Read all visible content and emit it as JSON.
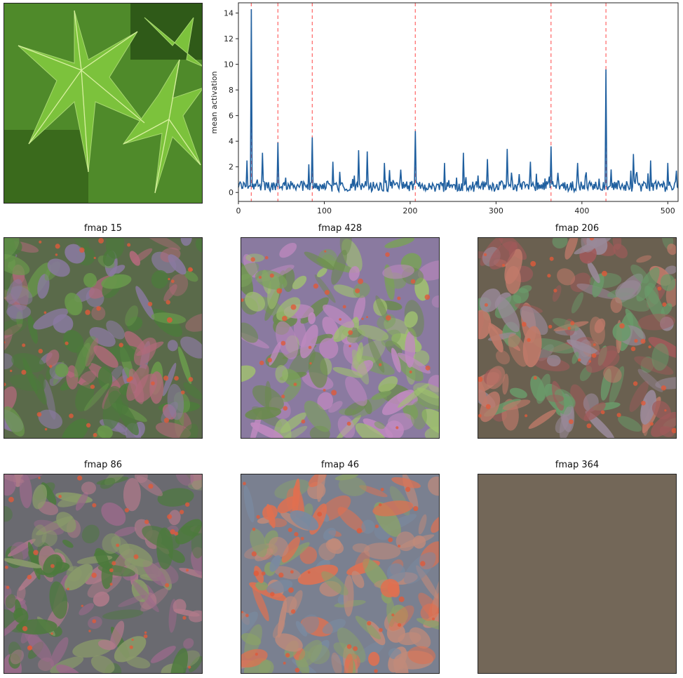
{
  "image": {
    "subject": "leaf photo"
  },
  "panels": [
    {
      "title": "fmap 15",
      "base": "#5a6a4a",
      "accents": [
        "#6a9a4c",
        "#b06a7a",
        "#8a7aa0",
        "#4c7a3c"
      ]
    },
    {
      "title": "fmap 428",
      "base": "#8a7aa0",
      "accents": [
        "#7aa05a",
        "#c08ac0",
        "#6a8a4c",
        "#a0c070"
      ]
    },
    {
      "title": "fmap 206",
      "base": "#6a6050",
      "accents": [
        "#a05a5a",
        "#6a9a6a",
        "#9a8a9a",
        "#c07a6a"
      ]
    },
    {
      "title": "fmap 86",
      "base": "#6a6a70",
      "accents": [
        "#4c7a3c",
        "#b07a8a",
        "#8a9a6a",
        "#9a6a8a"
      ]
    },
    {
      "title": "fmap 46",
      "base": "#7a8090",
      "accents": [
        "#8aa06a",
        "#c08a7a",
        "#7a8aa0",
        "#e07050"
      ]
    },
    {
      "title": "fmap 364",
      "base": "#736758",
      "accents": []
    }
  ],
  "chart_data": {
    "type": "line",
    "title": "",
    "xlabel": "",
    "ylabel": "mean activation",
    "xlim": [
      0,
      512
    ],
    "ylim": [
      -0.7,
      14.8
    ],
    "xticks": [
      0,
      100,
      200,
      300,
      400,
      500
    ],
    "yticks": [
      0,
      2,
      4,
      6,
      8,
      10,
      12,
      14
    ],
    "grid": false,
    "line_color": "#1f5f9f",
    "highlight_color": "#ff7070",
    "highlight_x": [
      15,
      46,
      86,
      206,
      364,
      428
    ],
    "peaks": [
      {
        "x": 15,
        "y": 14.3
      },
      {
        "x": 46,
        "y": 3.9
      },
      {
        "x": 86,
        "y": 4.3
      },
      {
        "x": 206,
        "y": 4.8
      },
      {
        "x": 364,
        "y": 3.6
      },
      {
        "x": 428,
        "y": 9.6
      },
      {
        "x": 28,
        "y": 3.1
      },
      {
        "x": 10,
        "y": 2.5
      },
      {
        "x": 140,
        "y": 3.3
      },
      {
        "x": 150,
        "y": 3.2
      },
      {
        "x": 262,
        "y": 3.1
      },
      {
        "x": 313,
        "y": 3.4
      },
      {
        "x": 460,
        "y": 3.0
      },
      {
        "x": 82,
        "y": 2.2
      },
      {
        "x": 110,
        "y": 2.4
      },
      {
        "x": 170,
        "y": 2.3
      },
      {
        "x": 240,
        "y": 2.3
      },
      {
        "x": 290,
        "y": 2.6
      },
      {
        "x": 340,
        "y": 2.4
      },
      {
        "x": 395,
        "y": 2.3
      },
      {
        "x": 480,
        "y": 2.5
      },
      {
        "x": 500,
        "y": 2.3
      },
      {
        "x": 510,
        "y": 1.7
      }
    ],
    "baseline_mean": 0.45
  }
}
